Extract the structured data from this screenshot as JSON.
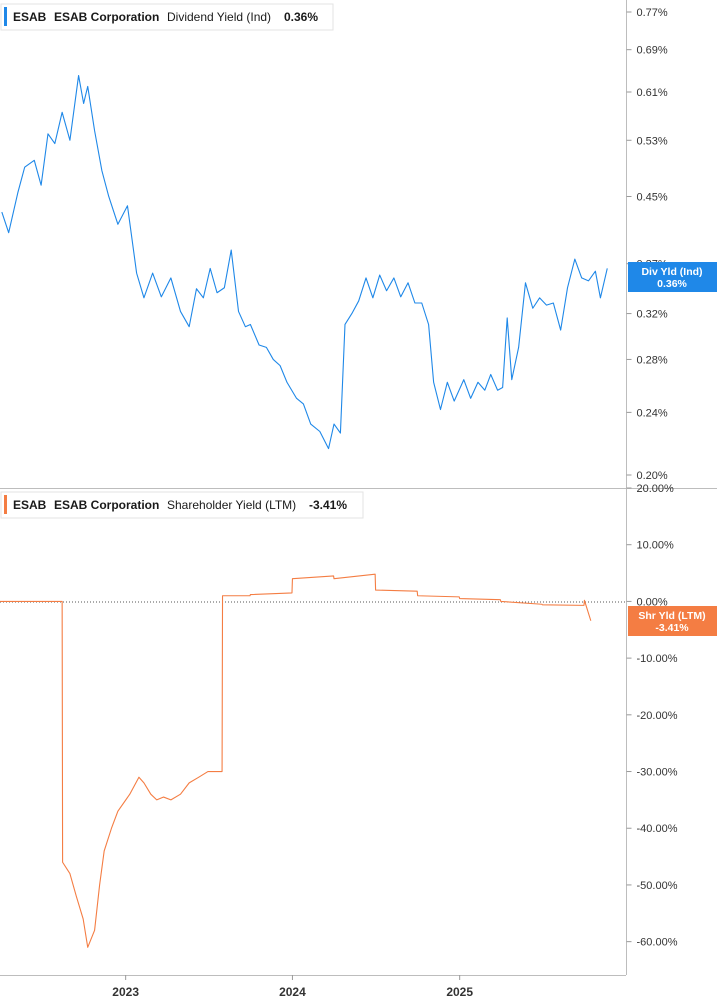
{
  "x_axis": {
    "labels": [
      "2023",
      "2024",
      "2025"
    ]
  },
  "colors": {
    "dividend": "#1f88e8",
    "shareholder": "#f47d43",
    "axis": "#bdbdbd",
    "zero_line": "#555555"
  },
  "panels": [
    {
      "legend": {
        "ticker": "ESAB",
        "company": "ESAB Corporation",
        "metric": "Dividend Yield (Ind)",
        "value": "0.36%"
      },
      "badge": {
        "line1": "Div Yld (Ind)",
        "line2": "0.36%"
      },
      "tick_labels": [
        "0.77%",
        "0.69%",
        "0.61%",
        "0.53%",
        "0.45%",
        "0.37%",
        "0.32%",
        "0.28%",
        "0.24%",
        "0.20%"
      ]
    },
    {
      "legend": {
        "ticker": "ESAB",
        "company": "ESAB Corporation",
        "metric": "Shareholder Yield (LTM)",
        "value": "-3.41%"
      },
      "badge": {
        "line1": "Shr Yld (LTM)",
        "line2": "-3.41%"
      },
      "tick_labels": [
        "20.00%",
        "10.00%",
        "0.00%",
        "-10.00%",
        "-20.00%",
        "-30.00%",
        "-40.00%",
        "-50.00%",
        "-60.00%"
      ]
    }
  ],
  "chart_data": [
    {
      "type": "line",
      "series": [
        {
          "name": "Dividend Yield (Ind)",
          "x": [
            "2022-04-05",
            "2022-04-20",
            "2022-05-10",
            "2022-05-25",
            "2022-06-15",
            "2022-06-30",
            "2022-07-15",
            "2022-07-30",
            "2022-08-15",
            "2022-09-01",
            "2022-09-20",
            "2022-10-01",
            "2022-10-10",
            "2022-10-25",
            "2022-11-10",
            "2022-11-25",
            "2022-12-15",
            "2023-01-05",
            "2023-01-25",
            "2023-02-10",
            "2023-03-01",
            "2023-03-20",
            "2023-04-10",
            "2023-05-01",
            "2023-05-20",
            "2023-06-05",
            "2023-06-20",
            "2023-07-05",
            "2023-07-20",
            "2023-08-05",
            "2023-08-20",
            "2023-09-05",
            "2023-09-20",
            "2023-10-01",
            "2023-10-20",
            "2023-11-05",
            "2023-11-20",
            "2023-12-05",
            "2023-12-20",
            "2024-01-10",
            "2024-01-25",
            "2024-02-10",
            "2024-03-01",
            "2024-03-20",
            "2024-04-01",
            "2024-04-15",
            "2024-04-25",
            "2024-05-10",
            "2024-05-25",
            "2024-06-10",
            "2024-06-25",
            "2024-07-10",
            "2024-07-25",
            "2024-08-10",
            "2024-08-25",
            "2024-09-10",
            "2024-09-25",
            "2024-10-10",
            "2024-10-25",
            "2024-11-05",
            "2024-11-20",
            "2024-12-05",
            "2024-12-20",
            "2025-01-10",
            "2025-01-25",
            "2025-02-10",
            "2025-02-25",
            "2025-03-10",
            "2025-03-25",
            "2025-04-05",
            "2025-04-15",
            "2025-04-25",
            "2025-05-10",
            "2025-05-25",
            "2025-06-10",
            "2025-06-25",
            "2025-07-10",
            "2025-07-25",
            "2025-08-10",
            "2025-08-25",
            "2025-09-10",
            "2025-09-25",
            "2025-10-10",
            "2025-10-25",
            "2025-11-05",
            "2025-11-20"
          ],
          "values": [
            0.43,
            0.405,
            0.455,
            0.49,
            0.5,
            0.465,
            0.54,
            0.525,
            0.575,
            0.53,
            0.64,
            0.59,
            0.62,
            0.545,
            0.485,
            0.45,
            0.415,
            0.438,
            0.36,
            0.335,
            0.36,
            0.336,
            0.355,
            0.322,
            0.308,
            0.344,
            0.335,
            0.365,
            0.34,
            0.345,
            0.385,
            0.322,
            0.308,
            0.31,
            0.292,
            0.29,
            0.28,
            0.275,
            0.262,
            0.25,
            0.246,
            0.232,
            0.227,
            0.216,
            0.232,
            0.226,
            0.31,
            0.32,
            0.332,
            0.355,
            0.335,
            0.358,
            0.342,
            0.355,
            0.336,
            0.35,
            0.33,
            0.33,
            0.31,
            0.262,
            0.242,
            0.262,
            0.248,
            0.264,
            0.25,
            0.262,
            0.256,
            0.268,
            0.256,
            0.258,
            0.316,
            0.264,
            0.29,
            0.35,
            0.325,
            0.335,
            0.328,
            0.33,
            0.305,
            0.345,
            0.375,
            0.355,
            0.352,
            0.362,
            0.335,
            0.365
          ]
        }
      ],
      "ylim": [
        0.2,
        0.77
      ],
      "yscale": "log"
    },
    {
      "type": "line",
      "series": [
        {
          "name": "Shareholder Yield (LTM)",
          "x": [
            "2022-04-01",
            "2022-08-15",
            "2022-08-16",
            "2022-09-01",
            "2022-09-15",
            "2022-09-30",
            "2022-10-10",
            "2022-10-25",
            "2022-11-05",
            "2022-11-15",
            "2022-12-01",
            "2022-12-15",
            "2023-01-10",
            "2023-01-30",
            "2023-02-10",
            "2023-02-25",
            "2023-03-10",
            "2023-03-25",
            "2023-04-10",
            "2023-05-01",
            "2023-05-20",
            "2023-06-10",
            "2023-06-30",
            "2023-07-31",
            "2023-08-01",
            "2023-09-30",
            "2023-10-01",
            "2023-12-31",
            "2024-01-01",
            "2024-03-31",
            "2024-04-01",
            "2024-06-30",
            "2024-07-01",
            "2024-09-30",
            "2024-10-01",
            "2024-12-31",
            "2025-01-01",
            "2025-03-31",
            "2025-04-01",
            "2025-06-30",
            "2025-07-01",
            "2025-09-30",
            "2025-10-01",
            "2025-10-15"
          ],
          "values": [
            0,
            0,
            -46,
            -48,
            -52,
            -56,
            -61,
            -58,
            -50,
            -44,
            -40,
            -37,
            -34,
            -31,
            -32,
            -34,
            -35,
            -34.5,
            -35,
            -34,
            -32,
            -31,
            -30,
            -30,
            1,
            1,
            1.2,
            1.5,
            4,
            4.5,
            4,
            4.8,
            2,
            1.8,
            1,
            0.8,
            0.5,
            0.3,
            0,
            -0.5,
            -0.6,
            -0.7,
            0.2,
            -3.41
          ]
        }
      ],
      "ylim": [
        -65,
        20
      ]
    }
  ]
}
